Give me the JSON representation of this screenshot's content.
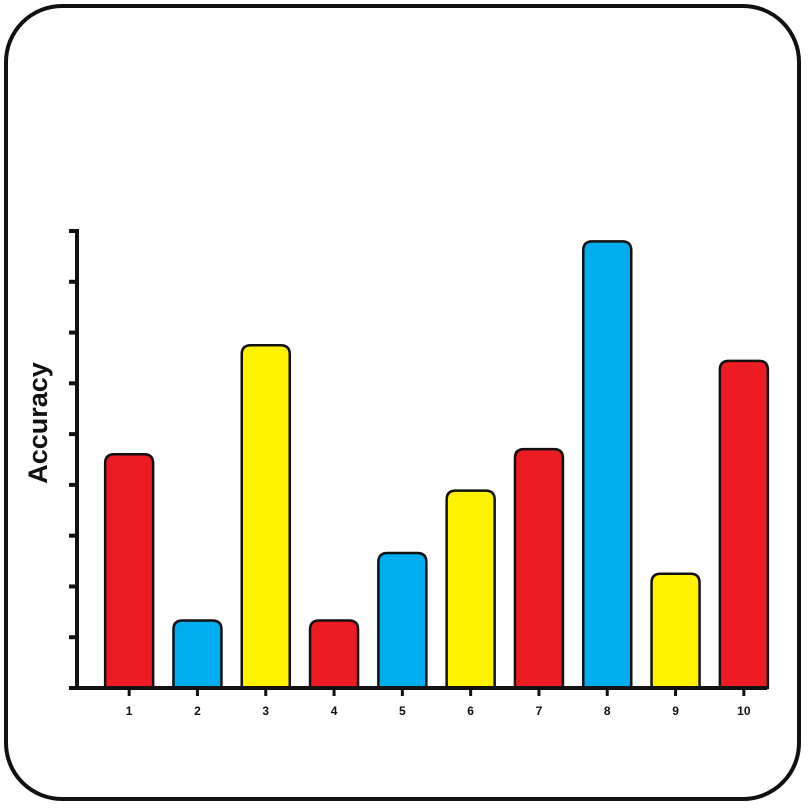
{
  "chart_data": {
    "type": "bar",
    "title": "",
    "xlabel": "",
    "ylabel": "Accuracy",
    "categories": [
      "1",
      "2",
      "3",
      "4",
      "5",
      "6",
      "7",
      "8",
      "9",
      "10"
    ],
    "values": [
      4.5,
      1.3,
      6.6,
      1.3,
      2.6,
      3.8,
      4.6,
      8.6,
      2.2,
      6.3
    ],
    "bar_colors": [
      "#ed1c24",
      "#00aeef",
      "#fff200",
      "#ed1c24",
      "#00aeef",
      "#fff200",
      "#ed1c24",
      "#00aeef",
      "#fff200",
      "#ed1c24"
    ],
    "ylim": [
      0,
      8.8
    ],
    "y_tick_count": 9,
    "y_tick_labels_shown": false,
    "grid": false,
    "legend": "none"
  }
}
